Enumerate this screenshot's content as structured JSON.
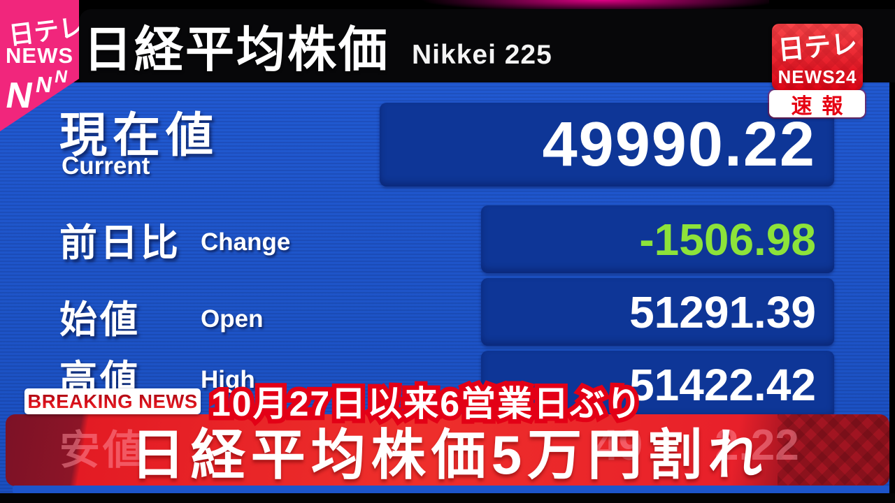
{
  "branding": {
    "nnn": {
      "jp": "日テレ",
      "news": "NEWS",
      "n1": "N",
      "n2": "N",
      "n3": "N"
    },
    "news24": {
      "jp": "日テレ",
      "name": "NEWS24"
    },
    "sokuho": "速報"
  },
  "header": {
    "title": "日経平均株価",
    "subtitle": "Nikkei 225"
  },
  "board": {
    "current": {
      "label": "現在値",
      "label_en": "Current",
      "value": "49990.22"
    },
    "change": {
      "label": "前日比",
      "label_en": "Change",
      "value": "-1506.98"
    },
    "open": {
      "label": "始値",
      "label_en": "Open",
      "value": "51291.39"
    },
    "high": {
      "label": "高値",
      "label_en": "High",
      "value": "51422.42"
    },
    "low_partial": {
      "label": "安値",
      "fragment_left": "49",
      "fragment_right": "2.22"
    }
  },
  "ticker": {
    "breaking": "BREAKING NEWS",
    "kicker": "10月27日以来6営業日ぶり",
    "headline": "日経平均株価5万円割れ"
  },
  "colors": {
    "board_blue": "#1e55c9",
    "value_box_navy": "#0e3697",
    "change_green": "#8de33a",
    "banner_red": "#e31b24",
    "brand_pink": "#f1267c",
    "news24_red": "#e60012"
  }
}
